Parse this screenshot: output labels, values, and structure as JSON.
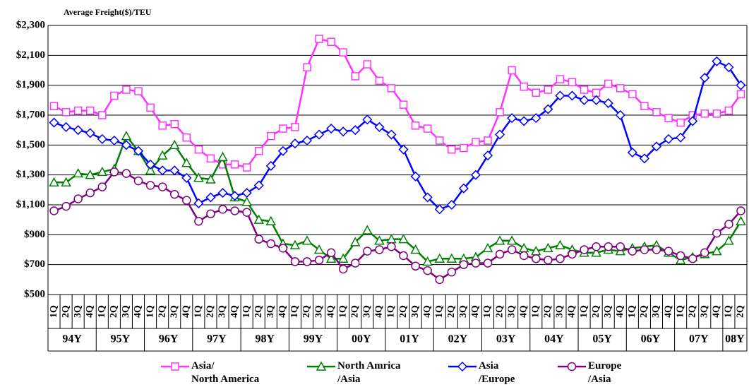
{
  "chart_data": {
    "type": "line",
    "title": "Average Freight($)/TEU",
    "categories": [
      "1Q",
      "2Q",
      "3Q",
      "4Q",
      "1Q",
      "2Q",
      "3Q",
      "4Q",
      "1Q",
      "2Q",
      "3Q",
      "4Q",
      "1Q",
      "2Q",
      "3Q",
      "4Q",
      "1Q",
      "2Q",
      "3Q",
      "4Q",
      "1Q",
      "2Q",
      "3Q",
      "4Q",
      "1Q",
      "2Q",
      "3Q",
      "4Q",
      "1Q",
      "2Q",
      "3Q",
      "4Q",
      "1Q",
      "2Q",
      "3Q",
      "4Q",
      "1Q",
      "2Q",
      "3Q",
      "4Q",
      "1Q",
      "2Q",
      "3Q",
      "4Q",
      "1Q",
      "2Q",
      "3Q",
      "4Q",
      "1Q",
      "2Q",
      "3Q",
      "4Q",
      "1Q",
      "2Q",
      "3Q",
      "4Q",
      "1Q",
      "2Q"
    ],
    "category_groups": [
      "94Y",
      "94Y",
      "94Y",
      "94Y",
      "95Y",
      "95Y",
      "95Y",
      "95Y",
      "96Y",
      "96Y",
      "96Y",
      "96Y",
      "97Y",
      "97Y",
      "97Y",
      "97Y",
      "98Y",
      "98Y",
      "98Y",
      "98Y",
      "99Y",
      "99Y",
      "99Y",
      "99Y",
      "00Y",
      "00Y",
      "00Y",
      "00Y",
      "01Y",
      "01Y",
      "01Y",
      "01Y",
      "02Y",
      "02Y",
      "02Y",
      "02Y",
      "03Y",
      "03Y",
      "03Y",
      "03Y",
      "04Y",
      "04Y",
      "04Y",
      "04Y",
      "05Y",
      "05Y",
      "05Y",
      "05Y",
      "06Y",
      "06Y",
      "06Y",
      "06Y",
      "07Y",
      "07Y",
      "07Y",
      "07Y",
      "08Y",
      "08Y"
    ],
    "series": [
      {
        "name": "Asia/\nNorth America",
        "color": "#ff33ff",
        "marker": "square",
        "values": [
          1760,
          1720,
          1730,
          1730,
          1700,
          1830,
          1870,
          1860,
          1750,
          1630,
          1640,
          1550,
          1470,
          1410,
          1370,
          1370,
          1350,
          1460,
          1560,
          1610,
          1620,
          2020,
          2210,
          2190,
          2120,
          1960,
          2040,
          1930,
          1880,
          1770,
          1630,
          1610,
          1530,
          1470,
          1480,
          1520,
          1530,
          1720,
          2000,
          1890,
          1850,
          1870,
          1940,
          1920,
          1870,
          1850,
          1910,
          1880,
          1840,
          1760,
          1720,
          1680,
          1650,
          1700,
          1710,
          1710,
          1730,
          1840
        ]
      },
      {
        "name": "North Amrica\n/Asia",
        "color": "#008000",
        "marker": "triangle",
        "values": [
          1250,
          1250,
          1310,
          1300,
          1320,
          1340,
          1560,
          1460,
          1330,
          1430,
          1500,
          1380,
          1280,
          1270,
          1420,
          1150,
          1120,
          1000,
          990,
          840,
          830,
          860,
          800,
          740,
          740,
          850,
          930,
          860,
          870,
          870,
          800,
          720,
          740,
          740,
          740,
          750,
          810,
          860,
          860,
          810,
          790,
          810,
          830,
          800,
          780,
          780,
          800,
          790,
          810,
          820,
          830,
          780,
          730,
          750,
          770,
          790,
          860,
          990
        ]
      },
      {
        "name": "Asia\n/Europe",
        "color": "#0000ff",
        "marker": "diamond",
        "values": [
          1650,
          1620,
          1600,
          1580,
          1540,
          1530,
          1500,
          1460,
          1370,
          1330,
          1330,
          1280,
          1110,
          1150,
          1180,
          1160,
          1180,
          1230,
          1360,
          1460,
          1510,
          1530,
          1570,
          1610,
          1590,
          1600,
          1670,
          1620,
          1570,
          1470,
          1290,
          1150,
          1070,
          1100,
          1210,
          1300,
          1430,
          1570,
          1680,
          1660,
          1680,
          1740,
          1830,
          1830,
          1800,
          1800,
          1780,
          1700,
          1450,
          1410,
          1490,
          1540,
          1550,
          1660,
          1950,
          2060,
          2020,
          1900
        ]
      },
      {
        "name": "Europe\n/Asia",
        "color": "#800080",
        "marker": "circle",
        "values": [
          1060,
          1090,
          1140,
          1180,
          1220,
          1320,
          1310,
          1260,
          1230,
          1220,
          1170,
          1130,
          990,
          1040,
          1070,
          1060,
          1050,
          870,
          840,
          810,
          720,
          720,
          730,
          780,
          670,
          710,
          790,
          800,
          820,
          760,
          690,
          660,
          600,
          650,
          700,
          710,
          710,
          770,
          800,
          760,
          740,
          730,
          740,
          770,
          800,
          820,
          820,
          820,
          790,
          800,
          800,
          790,
          760,
          740,
          780,
          910,
          970,
          1060
        ]
      }
    ],
    "ylim": [
      500,
      2300
    ],
    "yticks": [
      {
        "value": 500,
        "label": "$500"
      },
      {
        "value": 700,
        "label": "$700"
      },
      {
        "value": 900,
        "label": "$900"
      },
      {
        "value": 1100,
        "label": "$1,100"
      },
      {
        "value": 1300,
        "label": "$1,300"
      },
      {
        "value": 1500,
        "label": "$1,500"
      },
      {
        "value": 1700,
        "label": "$1,700"
      },
      {
        "value": 1900,
        "label": "$1,900"
      },
      {
        "value": 2100,
        "label": "$2,100"
      },
      {
        "value": 2300,
        "label": "$2,300"
      }
    ],
    "grid": true
  }
}
